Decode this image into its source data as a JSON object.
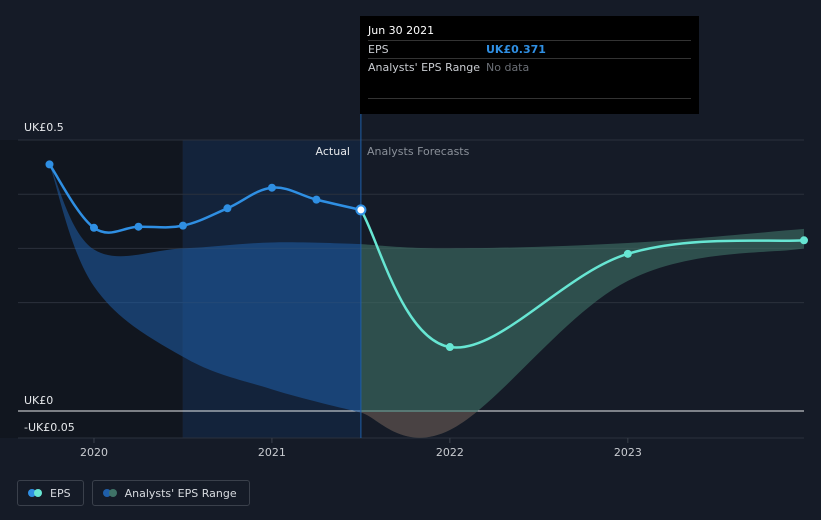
{
  "tooltip": {
    "date": "Jun 30 2021",
    "eps_label": "EPS",
    "eps_value": "UK£0.371",
    "range_label": "Analysts' EPS Range",
    "range_value": "No data"
  },
  "regions": {
    "actual": "Actual",
    "forecast": "Analysts Forecasts"
  },
  "legend": {
    "eps": "EPS",
    "range": "Analysts' EPS Range"
  },
  "colors": {
    "background": "#151b27",
    "eps_actual": "#2f8fe3",
    "eps_forecast": "#67e6d3",
    "range_past": "#1f5ea8",
    "range_forecast": "#3f7367",
    "range_negative": "#7a2a32"
  },
  "chart_data": {
    "type": "line",
    "y_tick_labels": [
      {
        "value": 0.5,
        "label": "UK£0.5"
      },
      {
        "value": 0,
        "label": "UK£0"
      },
      {
        "value": -0.05,
        "label": "-UK£0.05"
      }
    ],
    "x_tick_labels": [
      {
        "value": 2020,
        "label": "2020"
      },
      {
        "value": 2021,
        "label": "2021"
      },
      {
        "value": 2022,
        "label": "2022"
      },
      {
        "value": 2023,
        "label": "2023"
      }
    ],
    "ylim": [
      -0.05,
      0.5
    ],
    "xlim": [
      2019.5,
      2023.99
    ],
    "split_x": 2021.5,
    "highlight_range": [
      2020.5,
      2021.5
    ],
    "series": [
      {
        "name": "EPS",
        "segment": "actual",
        "points": [
          [
            2019.75,
            0.455
          ],
          [
            2020.0,
            0.338
          ],
          [
            2020.25,
            0.34
          ],
          [
            2020.5,
            0.342
          ],
          [
            2020.75,
            0.374
          ],
          [
            2021.0,
            0.412
          ],
          [
            2021.25,
            0.39
          ],
          [
            2021.5,
            0.371
          ]
        ]
      },
      {
        "name": "EPS",
        "segment": "forecast",
        "points": [
          [
            2021.5,
            0.371
          ],
          [
            2022.0,
            0.118
          ],
          [
            2023.0,
            0.29
          ],
          [
            2023.99,
            0.315
          ]
        ]
      }
    ],
    "range_band": {
      "name": "Analysts' EPS Range",
      "upper": [
        [
          2019.75,
          0.455
        ],
        [
          2020.0,
          0.298
        ],
        [
          2020.5,
          0.3
        ],
        [
          2021.0,
          0.311
        ],
        [
          2021.5,
          0.308
        ],
        [
          2022.0,
          0.3
        ],
        [
          2023.0,
          0.31
        ],
        [
          2023.99,
          0.336
        ]
      ],
      "lower": [
        [
          2019.75,
          0.455
        ],
        [
          2020.0,
          0.23
        ],
        [
          2020.5,
          0.1
        ],
        [
          2021.0,
          0.04
        ],
        [
          2021.5,
          -0.003
        ],
        [
          2022.0,
          -0.035
        ],
        [
          2023.0,
          0.24
        ],
        [
          2023.99,
          0.3
        ]
      ]
    }
  }
}
